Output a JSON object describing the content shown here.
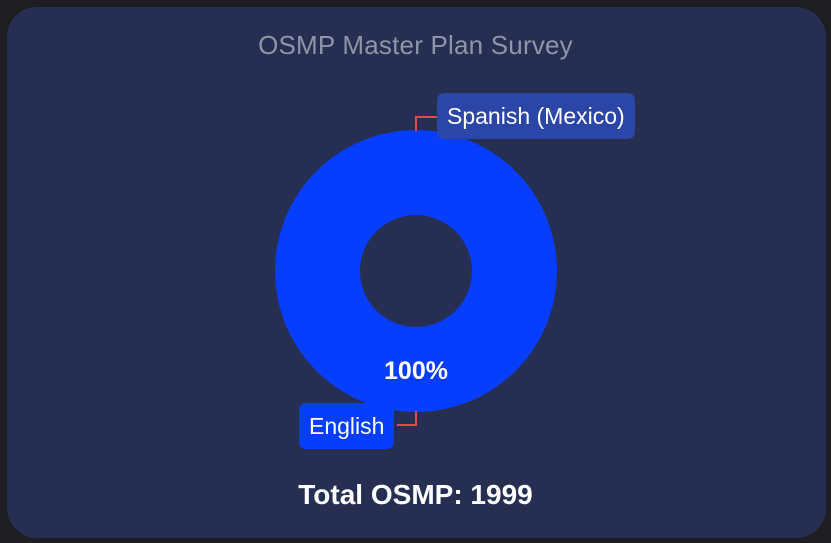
{
  "chart_data": {
    "type": "pie",
    "title": "OSMP Master Plan Survey",
    "slices": [
      {
        "label": "English",
        "value": 100,
        "percent_label": "100%",
        "color": "#063dff"
      },
      {
        "label": "Spanish (Mexico)",
        "value": 0,
        "percent_label": "",
        "color": "#2c46a8"
      }
    ],
    "donut": true,
    "leader_line_color": "#e04b4b"
  },
  "footer": {
    "total_text": "Total OSMP: 1999"
  },
  "colors": {
    "card_background": "#262f51",
    "title_text": "#8f94a8",
    "page_background": "#1d1d22"
  }
}
